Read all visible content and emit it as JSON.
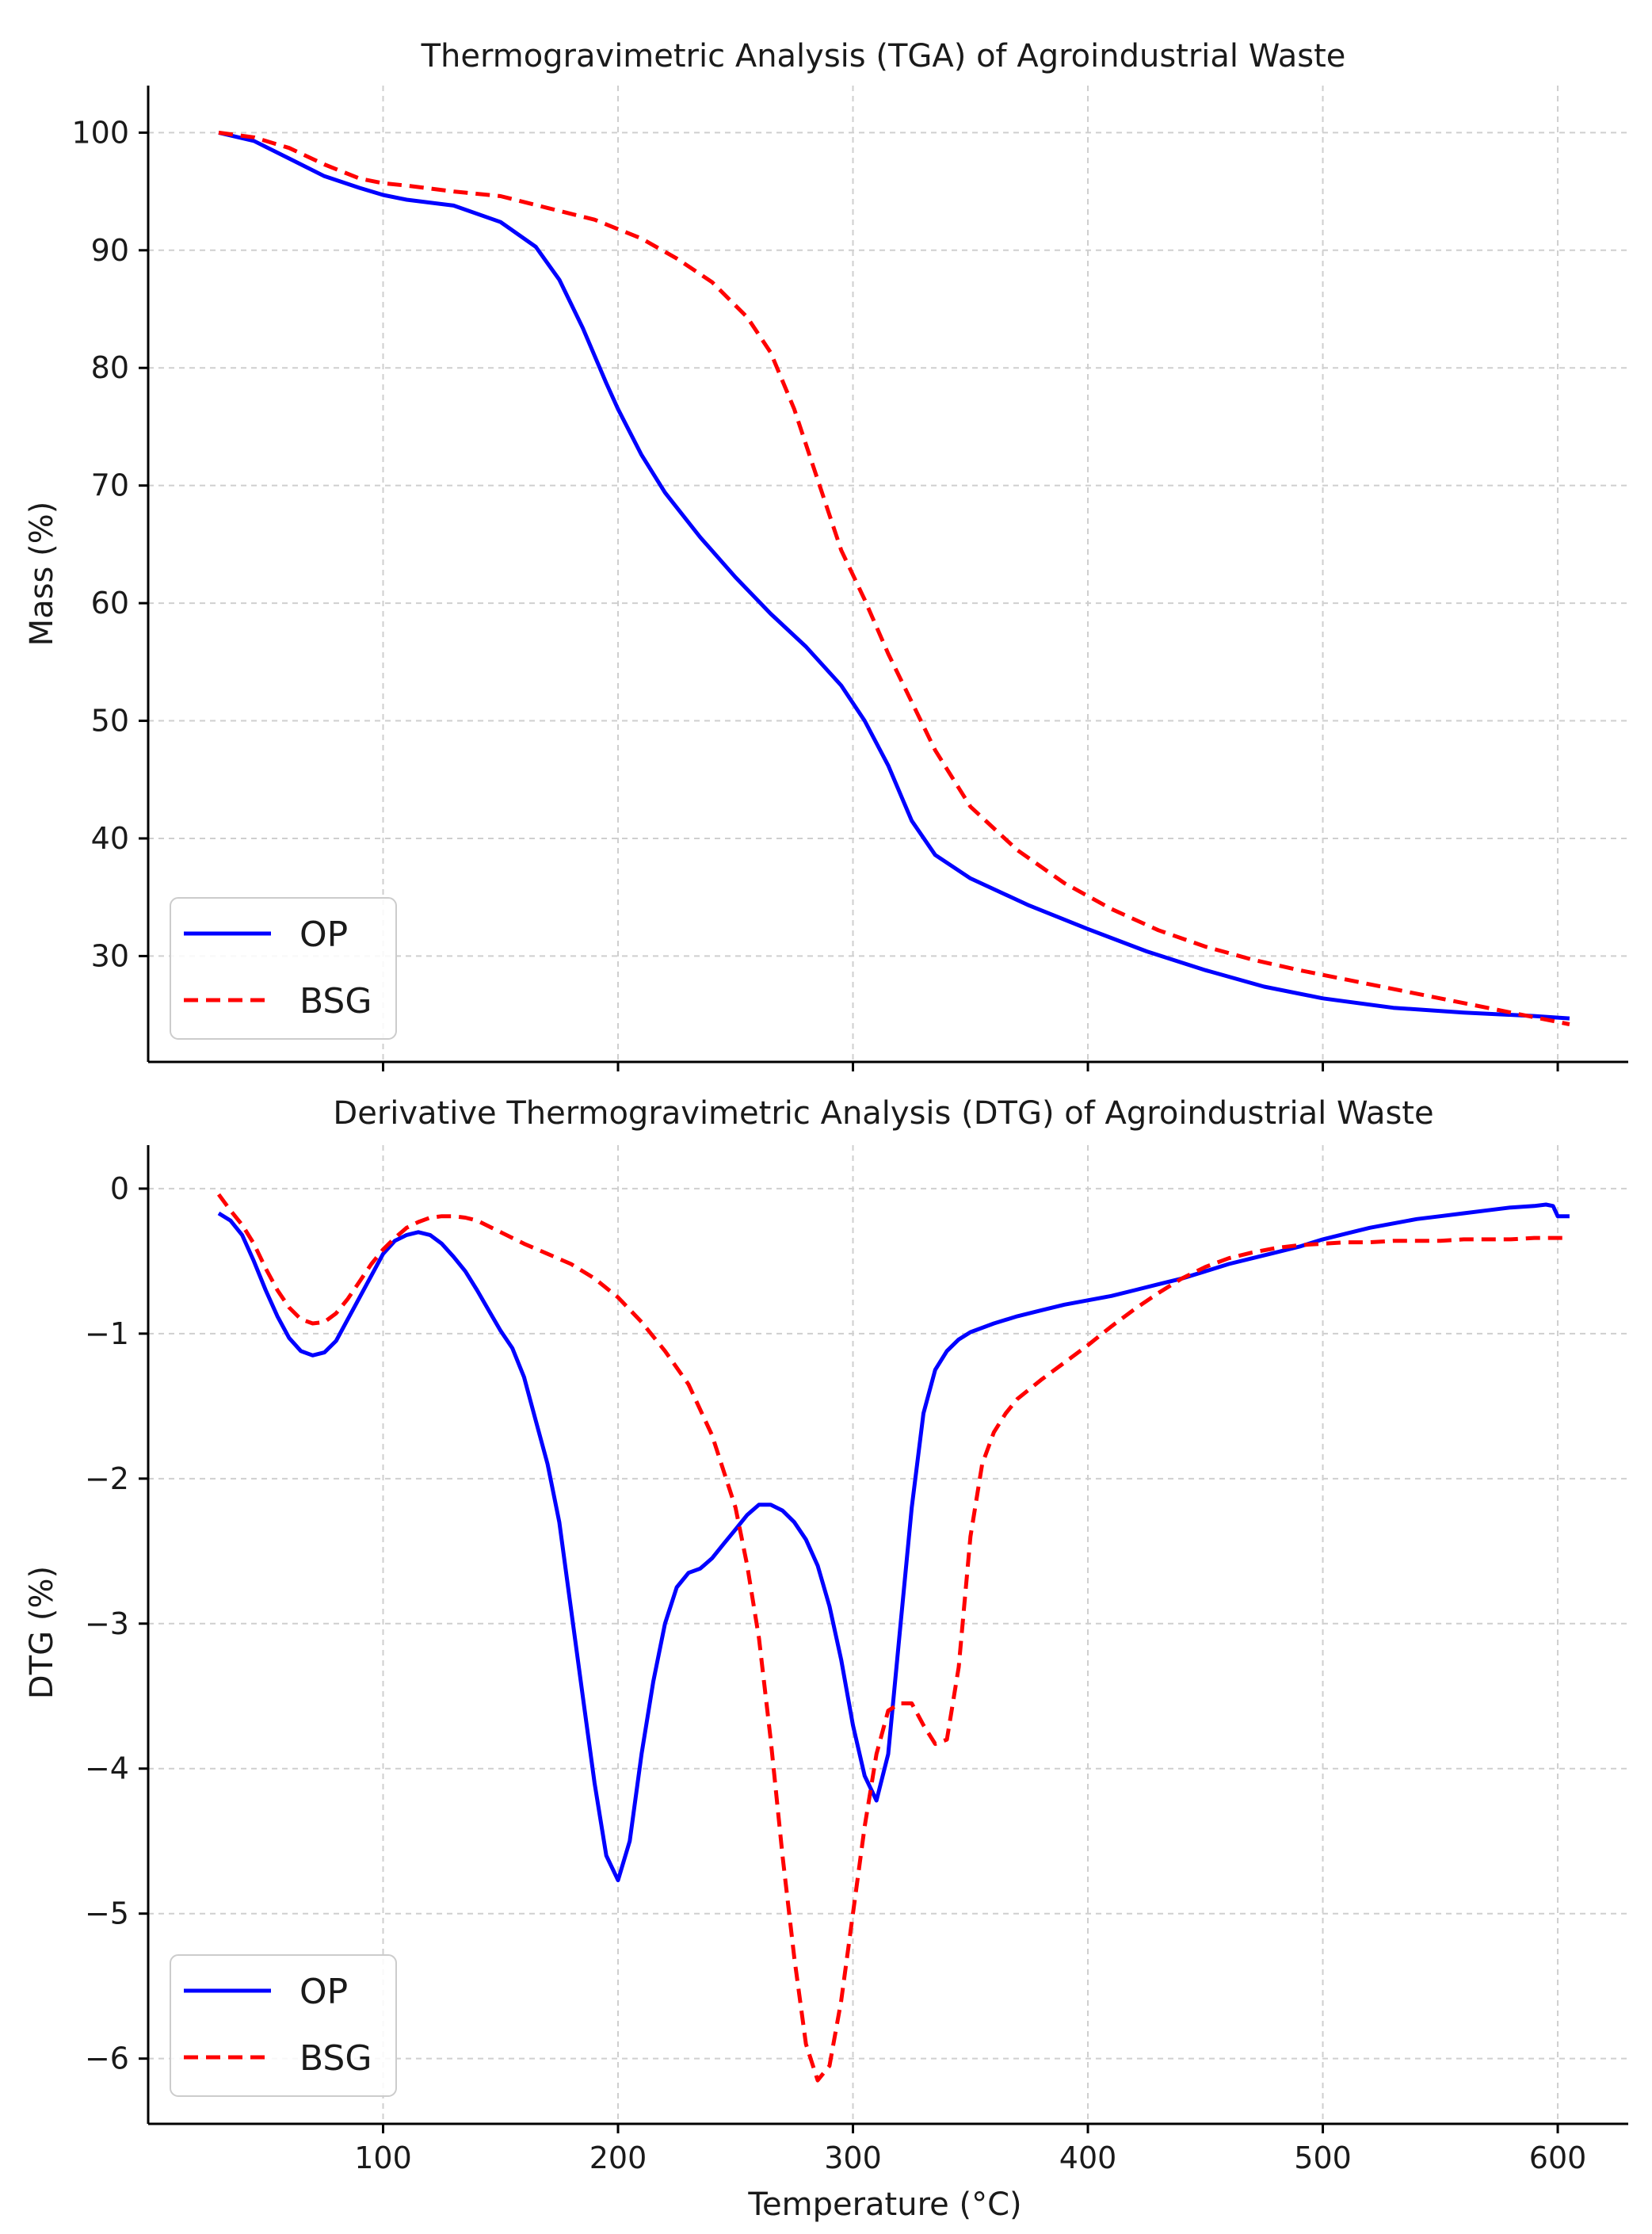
{
  "chart_data": [
    {
      "type": "line",
      "title": "Thermogravimetric Analysis (TGA) of Agroindustrial Waste",
      "xlabel": "",
      "ylabel": "Mass (%)",
      "xlim": [
        0,
        630
      ],
      "ylim": [
        21,
        104
      ],
      "grid": true,
      "legend": "lower-left",
      "xticks": [
        100,
        200,
        300,
        400,
        500,
        600
      ],
      "yticks": [
        30,
        40,
        50,
        60,
        70,
        80,
        90,
        100
      ],
      "series": [
        {
          "name": "OP",
          "color": "#0000ff",
          "dash": "solid",
          "x": [
            30,
            45,
            60,
            75,
            90,
            100,
            110,
            130,
            150,
            165,
            175,
            185,
            195,
            200,
            210,
            220,
            235,
            250,
            265,
            280,
            295,
            305,
            315,
            325,
            335,
            350,
            375,
            400,
            425,
            450,
            475,
            500,
            530,
            560,
            590,
            605
          ],
          "y": [
            100,
            99.3,
            97.8,
            96.3,
            95.3,
            94.7,
            94.3,
            93.8,
            92.4,
            90.3,
            87.5,
            83.4,
            78.7,
            76.5,
            72.6,
            69.4,
            65.6,
            62.2,
            59.1,
            56.3,
            53,
            50,
            46.2,
            41.5,
            38.6,
            36.6,
            34.3,
            32.3,
            30.4,
            28.8,
            27.4,
            26.4,
            25.6,
            25.2,
            24.9,
            24.7
          ]
        },
        {
          "name": "BSG",
          "color": "#ff0000",
          "dash": "dashed",
          "x": [
            30,
            45,
            60,
            75,
            90,
            100,
            110,
            130,
            150,
            170,
            190,
            210,
            225,
            240,
            255,
            265,
            275,
            285,
            295,
            305,
            315,
            325,
            335,
            350,
            370,
            390,
            410,
            430,
            450,
            470,
            490,
            510,
            540,
            570,
            590,
            605
          ],
          "y": [
            100,
            99.6,
            98.7,
            97.3,
            96.1,
            95.7,
            95.5,
            95,
            94.6,
            93.6,
            92.6,
            91,
            89.3,
            87.3,
            84.3,
            81.3,
            76.5,
            70.5,
            64.5,
            60.3,
            55.7,
            51.6,
            47.5,
            42.7,
            39,
            36.2,
            34,
            32.2,
            30.8,
            29.7,
            28.8,
            28,
            26.8,
            25.6,
            24.8,
            24.2
          ]
        }
      ]
    },
    {
      "type": "line",
      "title": "Derivative Thermogravimetric Analysis (DTG) of Agroindustrial Waste",
      "xlabel": "Temperature (°C)",
      "ylabel": "DTG (%)",
      "xlim": [
        0,
        630
      ],
      "ylim": [
        -6.45,
        0.3
      ],
      "grid": true,
      "legend": "lower-left",
      "xticks": [
        100,
        200,
        300,
        400,
        500,
        600
      ],
      "yticks": [
        0,
        -1,
        -2,
        -3,
        -4,
        -5,
        -6
      ],
      "ytick_labels": [
        "0",
        "−1",
        "−2",
        "−3",
        "−4",
        "−5",
        "−6"
      ],
      "series": [
        {
          "name": "OP",
          "color": "#0000ff",
          "dash": "solid",
          "x": [
            30,
            35,
            40,
            45,
            50,
            55,
            60,
            65,
            70,
            75,
            80,
            85,
            90,
            95,
            100,
            105,
            110,
            115,
            120,
            125,
            130,
            135,
            140,
            145,
            150,
            155,
            160,
            165,
            170,
            175,
            180,
            185,
            190,
            195,
            200,
            205,
            210,
            215,
            220,
            225,
            230,
            235,
            240,
            245,
            250,
            255,
            260,
            265,
            270,
            275,
            280,
            285,
            290,
            295,
            300,
            305,
            310,
            315,
            320,
            325,
            330,
            335,
            340,
            345,
            350,
            360,
            370,
            380,
            390,
            400,
            410,
            420,
            430,
            440,
            450,
            460,
            470,
            480,
            490,
            500,
            510,
            520,
            530,
            540,
            550,
            560,
            570,
            580,
            590,
            595,
            598,
            600,
            605
          ],
          "y": [
            -0.17,
            -0.22,
            -0.32,
            -0.5,
            -0.7,
            -0.88,
            -1.03,
            -1.12,
            -1.15,
            -1.13,
            -1.05,
            -0.9,
            -0.75,
            -0.6,
            -0.45,
            -0.36,
            -0.32,
            -0.3,
            -0.32,
            -0.38,
            -0.47,
            -0.57,
            -0.7,
            -0.84,
            -0.98,
            -1.1,
            -1.3,
            -1.6,
            -1.9,
            -2.3,
            -2.9,
            -3.5,
            -4.1,
            -4.6,
            -4.77,
            -4.5,
            -3.9,
            -3.4,
            -3,
            -2.75,
            -2.65,
            -2.62,
            -2.55,
            -2.45,
            -2.35,
            -2.25,
            -2.18,
            -2.18,
            -2.22,
            -2.3,
            -2.42,
            -2.6,
            -2.88,
            -3.25,
            -3.7,
            -4.05,
            -4.22,
            -3.9,
            -3.05,
            -2.2,
            -1.55,
            -1.25,
            -1.12,
            -1.04,
            -0.99,
            -0.93,
            -0.88,
            -0.84,
            -0.8,
            -0.77,
            -0.74,
            -0.7,
            -0.66,
            -0.62,
            -0.57,
            -0.52,
            -0.48,
            -0.44,
            -0.4,
            -0.35,
            -0.31,
            -0.27,
            -0.24,
            -0.21,
            -0.19,
            -0.17,
            -0.15,
            -0.13,
            -0.12,
            -0.11,
            -0.12,
            -0.19,
            -0.19
          ]
        },
        {
          "name": "BSG",
          "color": "#ff0000",
          "dash": "dashed",
          "x": [
            30,
            35,
            40,
            45,
            50,
            55,
            60,
            65,
            70,
            75,
            80,
            85,
            90,
            95,
            100,
            105,
            110,
            115,
            120,
            125,
            130,
            135,
            140,
            150,
            160,
            170,
            180,
            190,
            200,
            210,
            220,
            230,
            240,
            250,
            255,
            260,
            265,
            270,
            275,
            280,
            285,
            290,
            295,
            300,
            305,
            310,
            315,
            320,
            325,
            330,
            335,
            340,
            345,
            350,
            355,
            360,
            365,
            370,
            380,
            390,
            400,
            410,
            420,
            430,
            440,
            450,
            460,
            470,
            480,
            490,
            500,
            510,
            520,
            530,
            540,
            550,
            560,
            570,
            580,
            590,
            600,
            605
          ],
          "y": [
            -0.04,
            -0.15,
            -0.25,
            -0.38,
            -0.55,
            -0.7,
            -0.82,
            -0.9,
            -0.93,
            -0.92,
            -0.86,
            -0.76,
            -0.64,
            -0.52,
            -0.42,
            -0.34,
            -0.27,
            -0.23,
            -0.2,
            -0.19,
            -0.19,
            -0.2,
            -0.22,
            -0.3,
            -0.38,
            -0.45,
            -0.52,
            -0.62,
            -0.75,
            -0.92,
            -1.12,
            -1.35,
            -1.7,
            -2.2,
            -2.6,
            -3.1,
            -3.8,
            -4.6,
            -5.3,
            -5.9,
            -6.15,
            -6.05,
            -5.6,
            -5,
            -4.4,
            -3.9,
            -3.6,
            -3.55,
            -3.55,
            -3.7,
            -3.83,
            -3.8,
            -3.3,
            -2.4,
            -1.9,
            -1.68,
            -1.55,
            -1.45,
            -1.32,
            -1.2,
            -1.08,
            -0.95,
            -0.83,
            -0.72,
            -0.62,
            -0.54,
            -0.48,
            -0.44,
            -0.41,
            -0.39,
            -0.38,
            -0.37,
            -0.37,
            -0.36,
            -0.36,
            -0.36,
            -0.35,
            -0.35,
            -0.35,
            -0.34,
            -0.34,
            -0.34
          ]
        }
      ]
    }
  ]
}
